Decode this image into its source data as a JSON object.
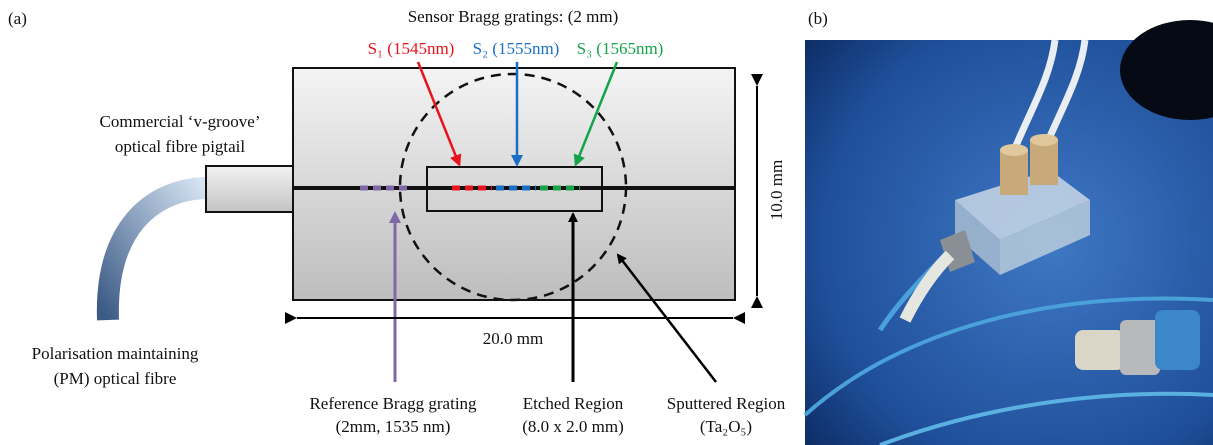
{
  "panel_a": {
    "label": "(a)",
    "title": "Sensor Bragg gratings: (2 mm)",
    "sensors": [
      "S₁ (1545nm)",
      "S₂ (1555nm)",
      "S₃ (1565nm)"
    ],
    "pigtail": [
      "Commercial ‘v-groove’",
      "optical fibre pigtail"
    ],
    "fibre": [
      "Polarisation maintaining",
      "(PM) optical fibre"
    ],
    "height": "10.0 mm",
    "width": "20.0 mm",
    "reference": [
      "Reference Bragg grating",
      "(2mm, 1535 nm)"
    ],
    "etched": [
      "Etched Region",
      "(8.0 x 2.0 mm)"
    ],
    "sputtered": [
      "Sputtered Region",
      "(Ta₂O₅)"
    ]
  },
  "panel_b": {
    "label": "(b)"
  }
}
